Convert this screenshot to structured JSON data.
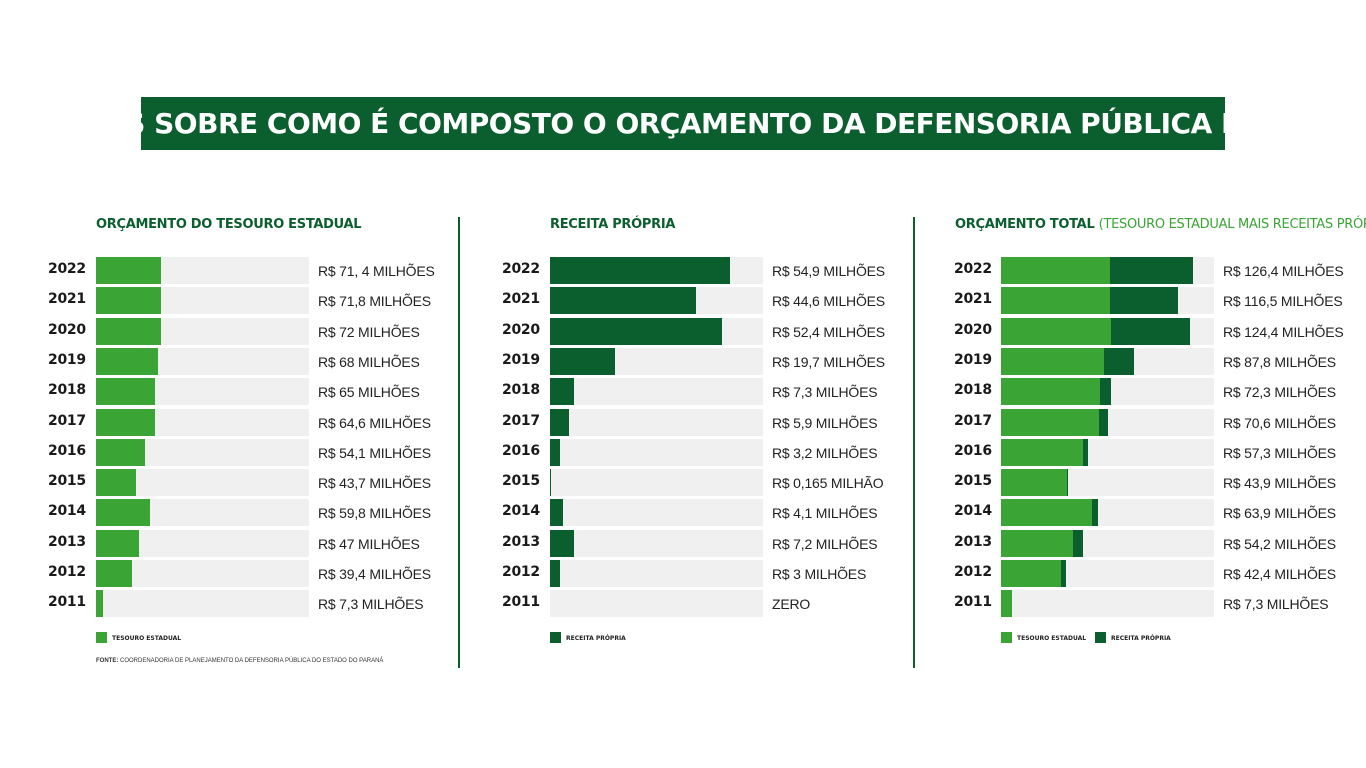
{
  "header": {
    "title": "SAIBA MAIS SOBRE COMO É COMPOSTO O ORÇAMENTO DA DEFENSORIA PÚBLICA DO PARANÁ"
  },
  "colors": {
    "tesouro": "#3aa535",
    "receita": "#0b5e2d",
    "track": "#f0f0f0"
  },
  "source": {
    "label": "FONTE:",
    "text": "COORDENADORIA DE PLANEJAMENTO DA DEFENSORIA PÚBLICA DO ESTADO DO PARANÁ"
  },
  "chart_data": [
    {
      "type": "bar",
      "orientation": "horizontal",
      "title": "ORÇAMENTO DO TESOURO ESTADUAL",
      "subtitle": "",
      "unit": "R$ milhões",
      "xlim": [
        0,
        235
      ],
      "categories": [
        "2022",
        "2021",
        "2020",
        "2019",
        "2018",
        "2017",
        "2016",
        "2015",
        "2014",
        "2013",
        "2012",
        "2011"
      ],
      "series": [
        {
          "name": "TESOURO ESTADUAL",
          "color": "#3aa535",
          "values": [
            71.4,
            71.8,
            72,
            68,
            65,
            64.6,
            54.1,
            43.7,
            59.8,
            47,
            39.4,
            7.3
          ]
        }
      ],
      "value_labels": [
        "R$ 71, 4 MILHÕES",
        "R$ 71,8 MILHÕES",
        "R$ 72 MILHÕES",
        "R$ 68 MILHÕES",
        "R$ 65 MILHÕES",
        "R$ 64,6 MILHÕES",
        "R$ 54,1 MILHÕES",
        "R$ 43,7 MILHÕES",
        "R$ 59,8 MILHÕES",
        "R$ 47 MILHÕES",
        "R$ 39,4 MILHÕES",
        "R$ 7,3 MILHÕES"
      ],
      "legend": [
        {
          "label": "TESOURO ESTADUAL",
          "color": "#3aa535"
        }
      ]
    },
    {
      "type": "bar",
      "orientation": "horizontal",
      "title": "RECEITA PRÓPRIA",
      "subtitle": "",
      "unit": "R$ milhões",
      "xlim": [
        0,
        65
      ],
      "categories": [
        "2022",
        "2021",
        "2020",
        "2019",
        "2018",
        "2017",
        "2016",
        "2015",
        "2014",
        "2013",
        "2012",
        "2011"
      ],
      "series": [
        {
          "name": "RECEITA PRÓPRIA",
          "color": "#0b5e2d",
          "values": [
            54.9,
            44.6,
            52.4,
            19.7,
            7.3,
            5.9,
            3.2,
            0.165,
            4.1,
            7.2,
            3,
            0
          ]
        }
      ],
      "value_labels": [
        "R$ 54,9 MILHÕES",
        "R$ 44,6 MILHÕES",
        "R$ 52,4 MILHÕES",
        "R$ 19,7 MILHÕES",
        "R$ 7,3 MILHÕES",
        "R$ 5,9 MILHÕES",
        "R$ 3,2 MILHÕES",
        "R$ 0,165 MILHÃO",
        "R$ 4,1 MILHÕES",
        "R$ 7,2 MILHÕES",
        "R$ 3 MILHÕES",
        "ZERO"
      ],
      "legend": [
        {
          "label": "RECEITA PRÓPRIA",
          "color": "#0b5e2d"
        }
      ]
    },
    {
      "type": "bar",
      "orientation": "horizontal",
      "stacked": true,
      "title": "ORÇAMENTO TOTAL",
      "subtitle": "(TESOURO ESTADUAL MAIS RECEITAS PRÓPRIAS)",
      "unit": "R$ milhões",
      "xlim": [
        0,
        140
      ],
      "categories": [
        "2022",
        "2021",
        "2020",
        "2019",
        "2018",
        "2017",
        "2016",
        "2015",
        "2014",
        "2013",
        "2012",
        "2011"
      ],
      "series": [
        {
          "name": "TESOURO ESTADUAL",
          "color": "#3aa535",
          "values": [
            71.4,
            71.8,
            72,
            68,
            65,
            64.6,
            54.1,
            43.7,
            59.8,
            47,
            39.4,
            7.3
          ]
        },
        {
          "name": "RECEITA PRÓPRIA",
          "color": "#0b5e2d",
          "values": [
            54.9,
            44.6,
            52.4,
            19.7,
            7.3,
            5.9,
            3.2,
            0.165,
            4.1,
            7.2,
            3,
            0
          ]
        }
      ],
      "value_labels": [
        "R$ 126,4 MILHÕES",
        "R$ 116,5 MILHÕES",
        "R$ 124,4 MILHÕES",
        "R$ 87,8 MILHÕES",
        "R$ 72,3 MILHÕES",
        "R$ 70,6 MILHÕES",
        "R$ 57,3 MILHÕES",
        "R$ 43,9 MILHÕES",
        "R$ 63,9  MILHÕES",
        "R$ 54,2 MILHÕES",
        "R$ 42,4 MILHÕES",
        "R$ 7,3 MILHÕES"
      ],
      "legend": [
        {
          "label": "TESOURO ESTADUAL",
          "color": "#3aa535"
        },
        {
          "label": "RECEITA PRÓPRIA",
          "color": "#0b5e2d"
        }
      ]
    }
  ]
}
